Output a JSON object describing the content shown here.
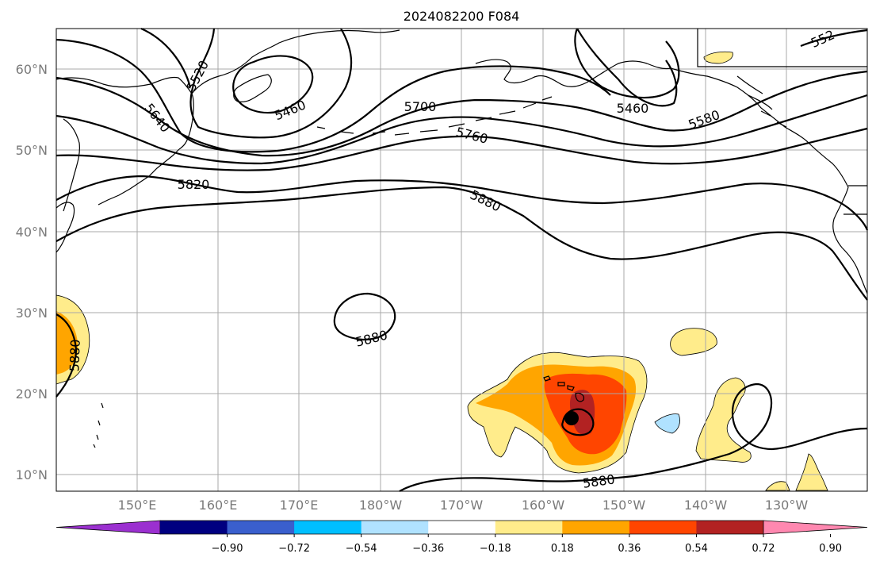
{
  "map": {
    "title": "2024082200 F084",
    "lat_labels": [
      "60°N",
      "50°N",
      "40°N",
      "30°N",
      "20°N",
      "10°N"
    ],
    "lon_labels": [
      "150°E",
      "160°E",
      "170°E",
      "180°W",
      "170°W",
      "160°W",
      "150°W",
      "140°W",
      "130°W"
    ],
    "contour_labels": [
      "5520",
      "5640",
      "5460",
      "5700",
      "5760",
      "5820",
      "5880",
      "5580",
      "5460",
      "5880",
      "5880",
      "5880",
      "552"
    ],
    "storm_marker": "storm-center"
  },
  "colorbar": {
    "ticks": [
      "−0.90",
      "−0.72",
      "−0.54",
      "−0.36",
      "−0.18",
      "0.18",
      "0.36",
      "0.54",
      "0.72",
      "0.90"
    ],
    "colors": [
      "#9b30d0",
      "#000080",
      "#3a5fcd",
      "#00bfff",
      "#b0e2ff",
      "#ffffff",
      "#ffec8b",
      "#ffa500",
      "#ff4500",
      "#b22222",
      "#ff88b0"
    ]
  }
}
